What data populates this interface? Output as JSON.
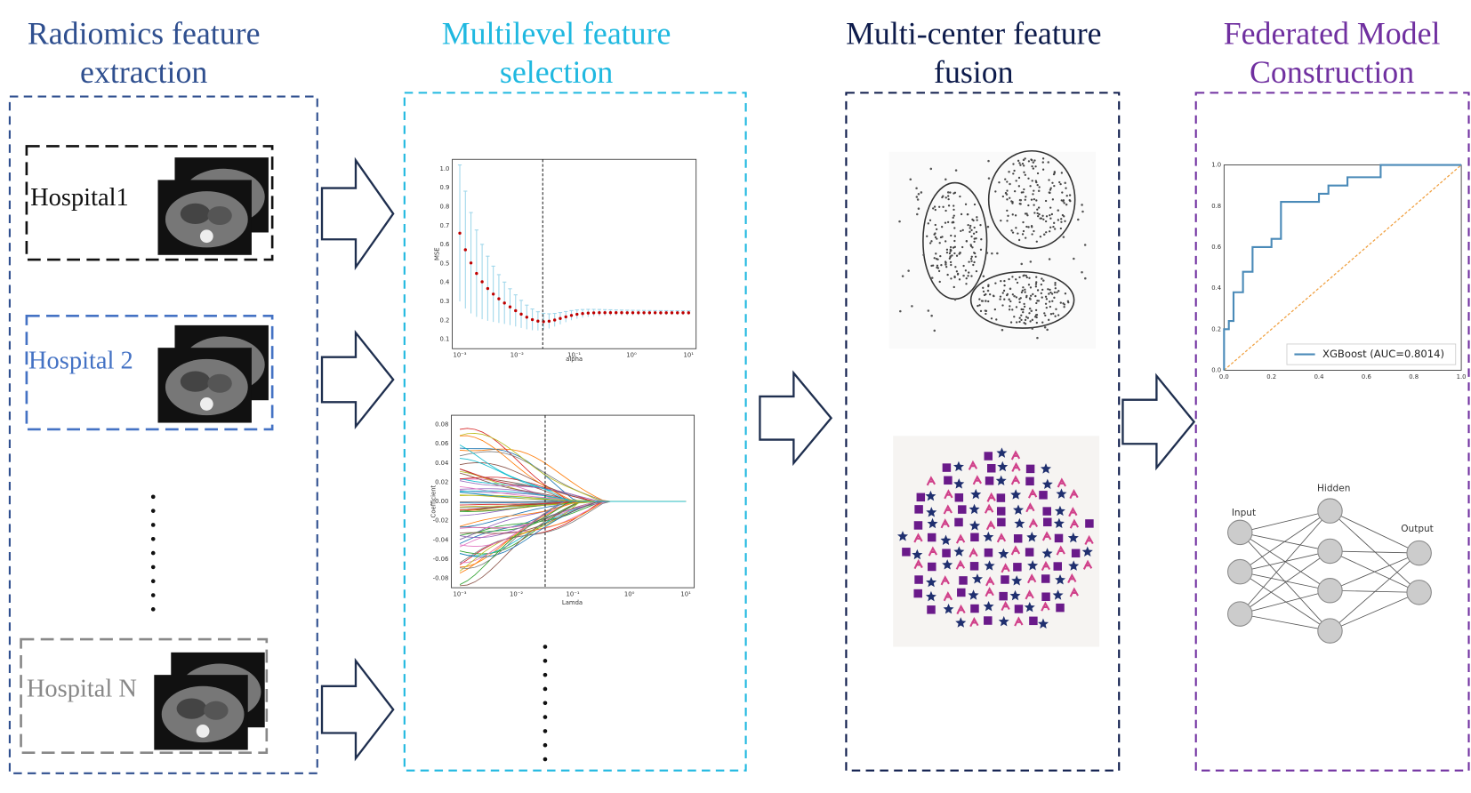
{
  "stages": [
    {
      "title": [
        "Radiomics feature",
        "extraction"
      ]
    },
    {
      "title": [
        "Multilevel feature",
        "selection"
      ]
    },
    {
      "title": [
        "Multi-center feature",
        "fusion"
      ]
    },
    {
      "title": [
        "Federated Model",
        "Construction"
      ]
    }
  ],
  "hospitals": [
    "Hospital1",
    "Hospital 2",
    "Hospital N"
  ],
  "mse_plot": {
    "y_label": "MSE",
    "x_label": "alpha",
    "yticks": [
      "0.1",
      "0.2",
      "0.3",
      "0.4",
      "0.5",
      "0.6",
      "0.7",
      "0.8",
      "0.9",
      "1.0"
    ],
    "xticks": [
      "10⁻³",
      "10⁻²",
      "10⁻¹",
      "10⁰",
      "10¹"
    ]
  },
  "coef_plot": {
    "y_label": "Coefficient",
    "x_label": "Lamda",
    "yticks": [
      "-0.08",
      "-0.06",
      "-0.04",
      "-0.02",
      "0.00",
      "0.02",
      "0.04",
      "0.06",
      "0.08"
    ],
    "xticks": [
      "10⁻³",
      "10⁻²",
      "10⁻¹",
      "10⁰",
      "10¹"
    ]
  },
  "roc_plot": {
    "legend": "XGBoost (AUC=0.8014)",
    "yticks": [
      "0.0",
      "0.2",
      "0.4",
      "0.6",
      "0.8",
      "1.0"
    ],
    "xticks": [
      "0.0",
      "0.2",
      "0.4",
      "0.6",
      "0.8",
      "1.0"
    ]
  },
  "network": {
    "input": "Input",
    "hidden": "Hidden",
    "output": "Output"
  }
}
